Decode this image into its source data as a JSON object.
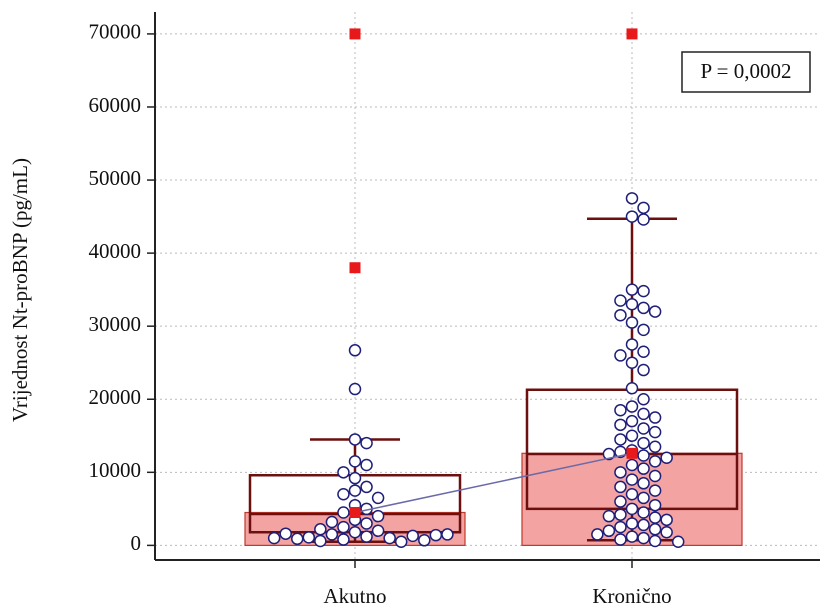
{
  "chart_data": {
    "type": "box",
    "y_label": "Vrijednost Nt-proBNP (pg/mL)",
    "annotation": "P = 0,0002",
    "categories": [
      "Akutno",
      "Kronično"
    ],
    "ylim": [
      -2000,
      73000
    ],
    "yticks": [
      0,
      10000,
      20000,
      30000,
      40000,
      50000,
      60000,
      70000
    ],
    "grid": true,
    "bar_color": "#f4a3a3",
    "bar_edge_color": "#c0392b",
    "box_color": "#6b0f0f",
    "point_color": "#1f1f7a",
    "mean_color": "#e8191b",
    "mean_line_color": "#6a6aa8",
    "boxes": [
      {
        "mean": 4500,
        "q1": 1800,
        "median": 4300,
        "q3": 9600,
        "whisker_low": 500,
        "whisker_high": 14500,
        "points": [
          26700,
          21400,
          14500,
          14000,
          11500,
          11000,
          10000,
          9200,
          8000,
          7500,
          7000,
          6500,
          5500,
          5000,
          4500,
          4000,
          3500,
          3000,
          2500,
          2000,
          1800,
          1500,
          1200,
          1000,
          800,
          600,
          500,
          1100,
          1300,
          900,
          700,
          1600,
          2200,
          3200,
          1400,
          1000,
          1500
        ],
        "outliers": [
          70000,
          38000
        ]
      },
      {
        "mean": 12600,
        "q1": 5000,
        "median": 12500,
        "q3": 21300,
        "whisker_low": 700,
        "whisker_high": 44700,
        "points": [
          47500,
          46200,
          45000,
          44600,
          35000,
          34800,
          33500,
          33000,
          32500,
          32000,
          31500,
          30500,
          29500,
          27500,
          26500,
          26000,
          25000,
          24000,
          21500,
          20000,
          19000,
          18500,
          18000,
          17500,
          17000,
          16500,
          16000,
          15500,
          15000,
          14500,
          14000,
          13500,
          13000,
          12800,
          12500,
          12300,
          12000,
          11500,
          11000,
          10500,
          10000,
          9500,
          9000,
          8500,
          8000,
          7500,
          7000,
          6500,
          6000,
          5500,
          5000,
          4500,
          4200,
          4000,
          3800,
          3500,
          3000,
          2800,
          2500,
          2200,
          2000,
          1800,
          1500,
          1200,
          1000,
          800,
          600,
          500
        ],
        "outliers": [
          70000
        ]
      }
    ]
  }
}
